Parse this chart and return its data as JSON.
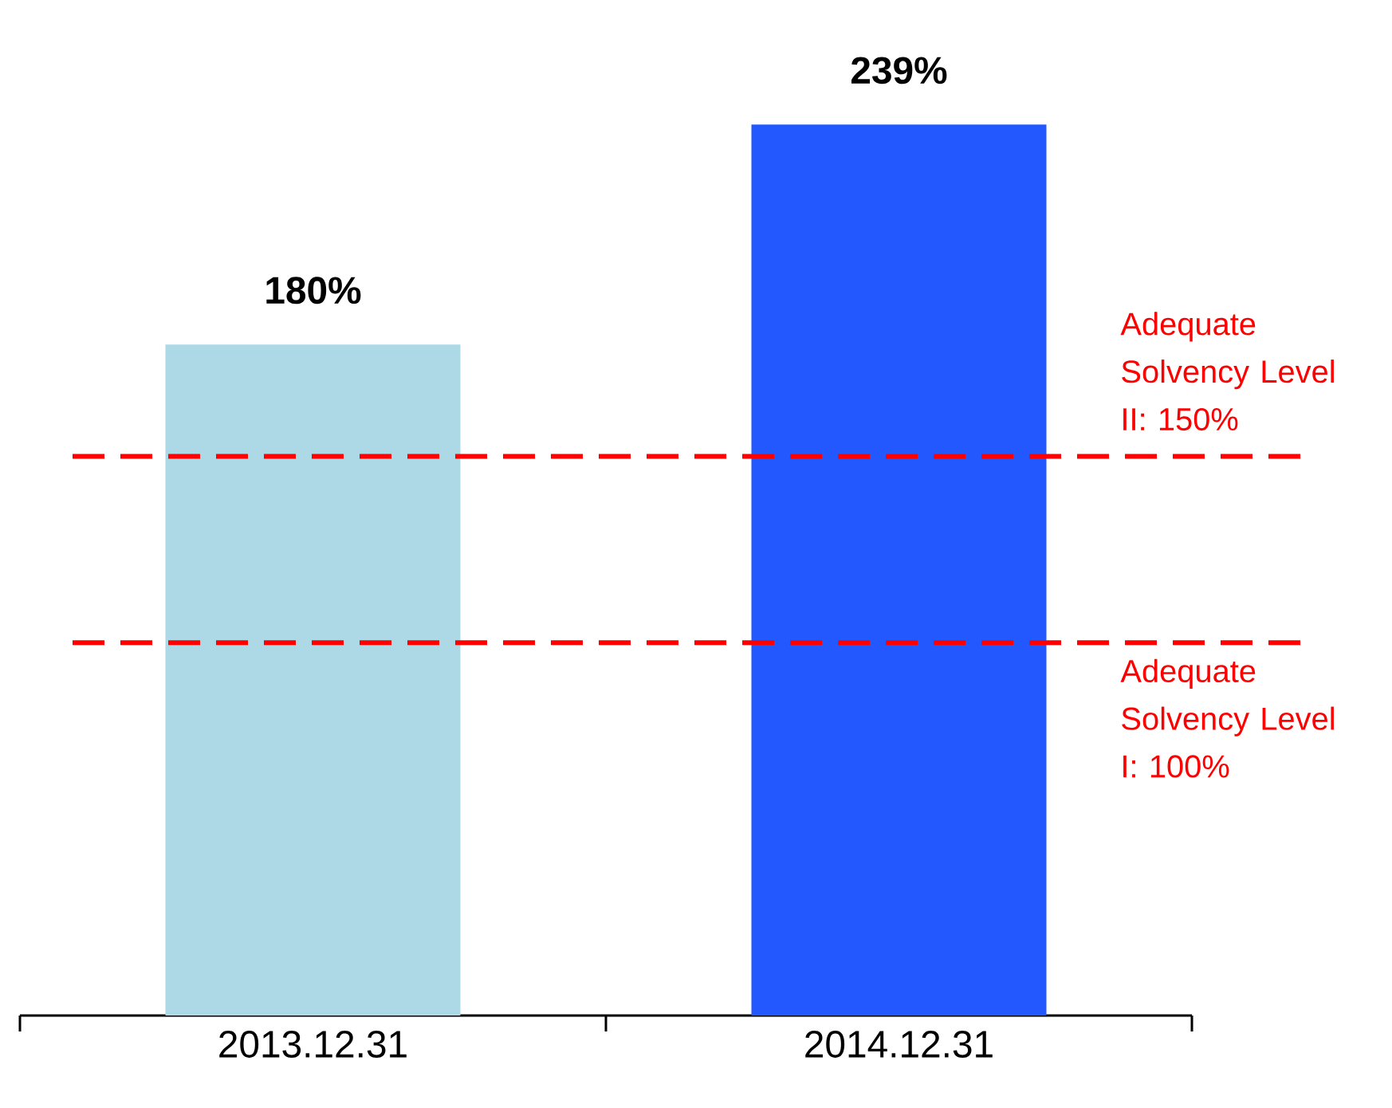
{
  "chart_data": {
    "type": "bar",
    "categories": [
      "2013.12.31",
      "2014.12.31"
    ],
    "values": [
      180,
      239
    ],
    "colors": [
      "#add8e6",
      "#2458ff"
    ],
    "value_labels": [
      "180%",
      "239%"
    ],
    "ref_lines": [
      {
        "axis": "y",
        "value": 150,
        "label": "Adequate Solvency Level II: 150%",
        "color": "#ff0000",
        "line_style": "dashed"
      },
      {
        "axis": "y",
        "value": 100,
        "label": "Adequate Solvency Level I: 100%",
        "color": "#ff0000",
        "line_style": "dashed"
      }
    ]
  }
}
